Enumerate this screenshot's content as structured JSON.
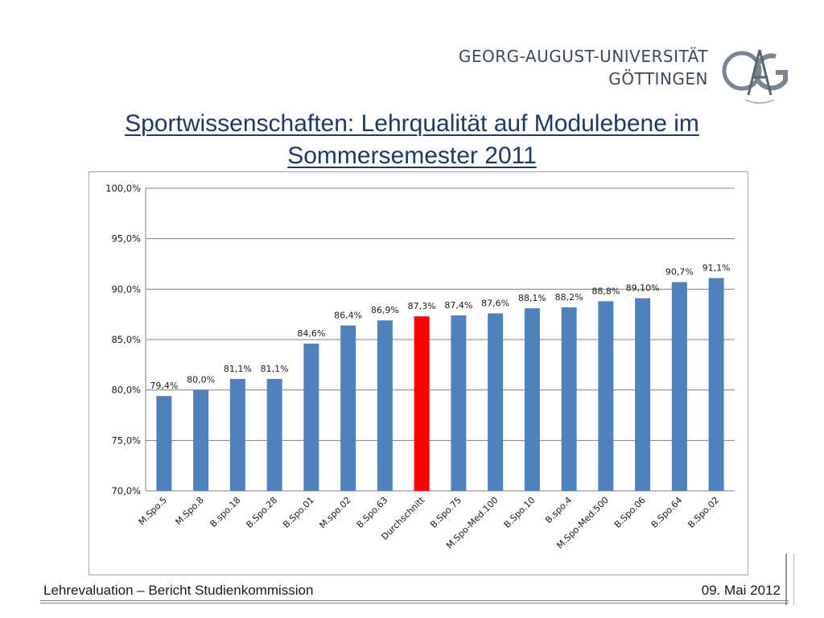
{
  "header": {
    "university_line1": "GEORG-AUGUST-UNIVERSITÄT",
    "university_line2": "GÖTTINGEN",
    "logo_text": "GAG"
  },
  "slide_title": {
    "line1": "Sportwissenschaften: Lehrqualität auf Modulebene im",
    "line2": "Sommersemester 2011"
  },
  "footer": {
    "left": "Lehrevaluation – Bericht Studienkommission",
    "right": "09. Mai 2012"
  },
  "colors": {
    "bar": "#4f81bd",
    "highlight_bar": "#ff0000",
    "title": "#1f3864",
    "grid": "#808080"
  },
  "chart_data": {
    "type": "bar",
    "title": "",
    "xlabel": "",
    "ylabel": "",
    "ylim": [
      70,
      100
    ],
    "y_ticks": [
      70,
      75,
      80,
      85,
      90,
      95,
      100
    ],
    "y_tick_labels": [
      "70,0%",
      "75,0%",
      "80,0%",
      "85,0%",
      "90,0%",
      "95,0%",
      "100,0%"
    ],
    "grid": true,
    "categories": [
      "M.Spo.5",
      "M.Spo.8",
      "B.spo.18",
      "B.Spo.28",
      "B.Spo.01",
      "M.spo.02",
      "B.Spo.63",
      "Durchschnitt",
      "B.Spo.75",
      "M.Spo-Med.100",
      "B.Spo.10",
      "B.spo.4",
      "M.Spo-Med.500",
      "B.Spo.06",
      "B.Spo.64",
      "B.Spo.02"
    ],
    "values": [
      79.4,
      80.0,
      81.1,
      81.1,
      84.6,
      86.4,
      86.9,
      87.3,
      87.4,
      87.6,
      88.1,
      88.2,
      88.8,
      89.1,
      90.7,
      91.1
    ],
    "data_labels": [
      "79,4%",
      "80,0%",
      "81,1%",
      "81,1%",
      "84,6%",
      "86,4%",
      "86,9%",
      "87,3%",
      "87,4%",
      "87,6%",
      "88,1%",
      "88,2%",
      "88,8%",
      "89,10%",
      "90,7%",
      "91,1%"
    ],
    "highlight_category": "Durchschnitt"
  }
}
